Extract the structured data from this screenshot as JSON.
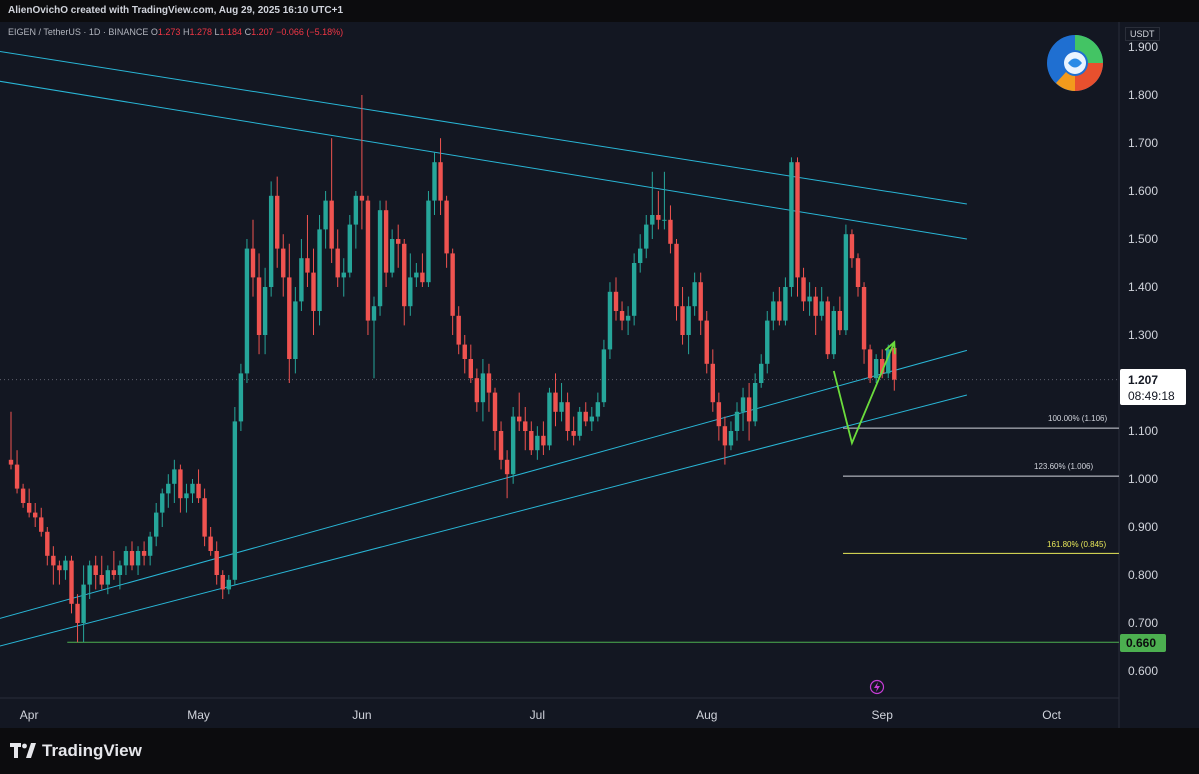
{
  "header": {
    "credit": "AlienOvichO created with TradingView.com, Aug 29, 2025 16:10 UTC+1"
  },
  "symbol": {
    "name": "EIGEN / TetherUS · 1D · BINANCE",
    "o_label": "O",
    "o": "1.273",
    "h_label": "H",
    "h": "1.278",
    "l_label": "L",
    "l": "1.184",
    "c_label": "C",
    "c": "1.207",
    "change": "−0.066 (−5.18%)"
  },
  "price_axis": {
    "unit": "USDT",
    "ticks": [
      "1.900",
      "1.800",
      "1.700",
      "1.600",
      "1.500",
      "1.400",
      "1.300",
      "1.100",
      "1.000",
      "0.900",
      "0.800",
      "0.700",
      "0.600"
    ],
    "current_price": "1.207",
    "countdown": "08:49:18",
    "level_label": "0.660"
  },
  "time_axis": {
    "ticks": [
      "Apr",
      "May",
      "Jun",
      "Jul",
      "Aug",
      "Sep",
      "Oct"
    ]
  },
  "fib_levels": [
    {
      "label": "100.00% (1.106)",
      "price": 1.106,
      "color": "#d1d4dc"
    },
    {
      "label": "123.60% (1.006)",
      "price": 1.006,
      "color": "#d1d4dc"
    },
    {
      "label": "161.80% (0.845)",
      "price": 0.845,
      "color": "#e8e85a"
    }
  ],
  "footer": {
    "brand": "TradingView"
  },
  "colors": {
    "up": "#26a69a",
    "down": "#ef5350",
    "trendline": "#29b6d6",
    "support": "#4caf50",
    "projection": "#6bdc3c",
    "background": "#131722"
  },
  "chart_data": {
    "type": "candlestick",
    "ylim": [
      0.58,
      1.92
    ],
    "x_unit": "trading days from Mar 29 2025",
    "candles": [
      {
        "o": 1.04,
        "h": 1.14,
        "l": 1.02,
        "c": 1.03
      },
      {
        "o": 1.03,
        "h": 1.06,
        "l": 0.97,
        "c": 0.98
      },
      {
        "o": 0.98,
        "h": 0.99,
        "l": 0.94,
        "c": 0.95
      },
      {
        "o": 0.95,
        "h": 0.98,
        "l": 0.92,
        "c": 0.93
      },
      {
        "o": 0.93,
        "h": 0.95,
        "l": 0.9,
        "c": 0.92
      },
      {
        "o": 0.92,
        "h": 0.94,
        "l": 0.88,
        "c": 0.89
      },
      {
        "o": 0.89,
        "h": 0.9,
        "l": 0.82,
        "c": 0.84
      },
      {
        "o": 0.84,
        "h": 0.86,
        "l": 0.78,
        "c": 0.82
      },
      {
        "o": 0.82,
        "h": 0.83,
        "l": 0.78,
        "c": 0.81
      },
      {
        "o": 0.81,
        "h": 0.84,
        "l": 0.79,
        "c": 0.83
      },
      {
        "o": 0.83,
        "h": 0.84,
        "l": 0.72,
        "c": 0.74
      },
      {
        "o": 0.74,
        "h": 0.76,
        "l": 0.66,
        "c": 0.7
      },
      {
        "o": 0.7,
        "h": 0.82,
        "l": 0.66,
        "c": 0.78
      },
      {
        "o": 0.78,
        "h": 0.83,
        "l": 0.75,
        "c": 0.82
      },
      {
        "o": 0.82,
        "h": 0.84,
        "l": 0.77,
        "c": 0.8
      },
      {
        "o": 0.8,
        "h": 0.84,
        "l": 0.77,
        "c": 0.78
      },
      {
        "o": 0.78,
        "h": 0.82,
        "l": 0.76,
        "c": 0.81
      },
      {
        "o": 0.81,
        "h": 0.85,
        "l": 0.79,
        "c": 0.8
      },
      {
        "o": 0.8,
        "h": 0.83,
        "l": 0.77,
        "c": 0.82
      },
      {
        "o": 0.82,
        "h": 0.86,
        "l": 0.8,
        "c": 0.85
      },
      {
        "o": 0.85,
        "h": 0.87,
        "l": 0.81,
        "c": 0.82
      },
      {
        "o": 0.82,
        "h": 0.86,
        "l": 0.8,
        "c": 0.85
      },
      {
        "o": 0.85,
        "h": 0.87,
        "l": 0.82,
        "c": 0.84
      },
      {
        "o": 0.84,
        "h": 0.89,
        "l": 0.82,
        "c": 0.88
      },
      {
        "o": 0.88,
        "h": 0.95,
        "l": 0.86,
        "c": 0.93
      },
      {
        "o": 0.93,
        "h": 0.98,
        "l": 0.9,
        "c": 0.97
      },
      {
        "o": 0.97,
        "h": 1.01,
        "l": 0.94,
        "c": 0.99
      },
      {
        "o": 0.99,
        "h": 1.04,
        "l": 0.95,
        "c": 1.02
      },
      {
        "o": 1.02,
        "h": 1.03,
        "l": 0.93,
        "c": 0.96
      },
      {
        "o": 0.96,
        "h": 0.99,
        "l": 0.93,
        "c": 0.97
      },
      {
        "o": 0.97,
        "h": 1.0,
        "l": 0.95,
        "c": 0.99
      },
      {
        "o": 0.99,
        "h": 1.02,
        "l": 0.95,
        "c": 0.96
      },
      {
        "o": 0.96,
        "h": 0.98,
        "l": 0.86,
        "c": 0.88
      },
      {
        "o": 0.88,
        "h": 0.9,
        "l": 0.84,
        "c": 0.85
      },
      {
        "o": 0.85,
        "h": 0.87,
        "l": 0.78,
        "c": 0.8
      },
      {
        "o": 0.8,
        "h": 0.81,
        "l": 0.75,
        "c": 0.77
      },
      {
        "o": 0.77,
        "h": 0.8,
        "l": 0.76,
        "c": 0.79
      },
      {
        "o": 0.79,
        "h": 1.15,
        "l": 0.78,
        "c": 1.12
      },
      {
        "o": 1.12,
        "h": 1.24,
        "l": 1.1,
        "c": 1.22
      },
      {
        "o": 1.22,
        "h": 1.5,
        "l": 1.2,
        "c": 1.48
      },
      {
        "o": 1.48,
        "h": 1.54,
        "l": 1.38,
        "c": 1.42
      },
      {
        "o": 1.42,
        "h": 1.47,
        "l": 1.26,
        "c": 1.3
      },
      {
        "o": 1.3,
        "h": 1.44,
        "l": 1.26,
        "c": 1.4
      },
      {
        "o": 1.4,
        "h": 1.62,
        "l": 1.38,
        "c": 1.59
      },
      {
        "o": 1.59,
        "h": 1.63,
        "l": 1.44,
        "c": 1.48
      },
      {
        "o": 1.48,
        "h": 1.51,
        "l": 1.38,
        "c": 1.42
      },
      {
        "o": 1.42,
        "h": 1.49,
        "l": 1.2,
        "c": 1.25
      },
      {
        "o": 1.25,
        "h": 1.4,
        "l": 1.22,
        "c": 1.37
      },
      {
        "o": 1.37,
        "h": 1.5,
        "l": 1.35,
        "c": 1.46
      },
      {
        "o": 1.46,
        "h": 1.55,
        "l": 1.4,
        "c": 1.43
      },
      {
        "o": 1.43,
        "h": 1.48,
        "l": 1.3,
        "c": 1.35
      },
      {
        "o": 1.35,
        "h": 1.55,
        "l": 1.32,
        "c": 1.52
      },
      {
        "o": 1.52,
        "h": 1.6,
        "l": 1.48,
        "c": 1.58
      },
      {
        "o": 1.58,
        "h": 1.71,
        "l": 1.45,
        "c": 1.48
      },
      {
        "o": 1.48,
        "h": 1.52,
        "l": 1.4,
        "c": 1.42
      },
      {
        "o": 1.42,
        "h": 1.46,
        "l": 1.38,
        "c": 1.43
      },
      {
        "o": 1.43,
        "h": 1.55,
        "l": 1.42,
        "c": 1.53
      },
      {
        "o": 1.53,
        "h": 1.6,
        "l": 1.48,
        "c": 1.59
      },
      {
        "o": 1.59,
        "h": 1.8,
        "l": 1.52,
        "c": 1.58
      },
      {
        "o": 1.58,
        "h": 1.59,
        "l": 1.3,
        "c": 1.33
      },
      {
        "o": 1.33,
        "h": 1.38,
        "l": 1.21,
        "c": 1.36
      },
      {
        "o": 1.36,
        "h": 1.58,
        "l": 1.34,
        "c": 1.56
      },
      {
        "o": 1.56,
        "h": 1.58,
        "l": 1.4,
        "c": 1.43
      },
      {
        "o": 1.43,
        "h": 1.52,
        "l": 1.42,
        "c": 1.5
      },
      {
        "o": 1.5,
        "h": 1.53,
        "l": 1.44,
        "c": 1.49
      },
      {
        "o": 1.49,
        "h": 1.5,
        "l": 1.32,
        "c": 1.36
      },
      {
        "o": 1.36,
        "h": 1.47,
        "l": 1.34,
        "c": 1.42
      },
      {
        "o": 1.42,
        "h": 1.45,
        "l": 1.4,
        "c": 1.43
      },
      {
        "o": 1.43,
        "h": 1.47,
        "l": 1.4,
        "c": 1.41
      },
      {
        "o": 1.41,
        "h": 1.6,
        "l": 1.4,
        "c": 1.58
      },
      {
        "o": 1.58,
        "h": 1.68,
        "l": 1.55,
        "c": 1.66
      },
      {
        "o": 1.66,
        "h": 1.71,
        "l": 1.55,
        "c": 1.58
      },
      {
        "o": 1.58,
        "h": 1.59,
        "l": 1.44,
        "c": 1.47
      },
      {
        "o": 1.47,
        "h": 1.48,
        "l": 1.3,
        "c": 1.34
      },
      {
        "o": 1.34,
        "h": 1.36,
        "l": 1.26,
        "c": 1.28
      },
      {
        "o": 1.28,
        "h": 1.3,
        "l": 1.22,
        "c": 1.25
      },
      {
        "o": 1.25,
        "h": 1.28,
        "l": 1.2,
        "c": 1.21
      },
      {
        "o": 1.21,
        "h": 1.23,
        "l": 1.14,
        "c": 1.16
      },
      {
        "o": 1.16,
        "h": 1.25,
        "l": 1.12,
        "c": 1.22
      },
      {
        "o": 1.22,
        "h": 1.24,
        "l": 1.14,
        "c": 1.18
      },
      {
        "o": 1.18,
        "h": 1.19,
        "l": 1.06,
        "c": 1.1
      },
      {
        "o": 1.1,
        "h": 1.12,
        "l": 1.02,
        "c": 1.04
      },
      {
        "o": 1.04,
        "h": 1.06,
        "l": 0.96,
        "c": 1.01
      },
      {
        "o": 1.01,
        "h": 1.15,
        "l": 0.99,
        "c": 1.13
      },
      {
        "o": 1.13,
        "h": 1.18,
        "l": 1.1,
        "c": 1.12
      },
      {
        "o": 1.12,
        "h": 1.15,
        "l": 1.06,
        "c": 1.1
      },
      {
        "o": 1.1,
        "h": 1.12,
        "l": 1.05,
        "c": 1.06
      },
      {
        "o": 1.06,
        "h": 1.11,
        "l": 1.04,
        "c": 1.09
      },
      {
        "o": 1.09,
        "h": 1.12,
        "l": 1.05,
        "c": 1.07
      },
      {
        "o": 1.07,
        "h": 1.19,
        "l": 1.06,
        "c": 1.18
      },
      {
        "o": 1.18,
        "h": 1.22,
        "l": 1.11,
        "c": 1.14
      },
      {
        "o": 1.14,
        "h": 1.2,
        "l": 1.12,
        "c": 1.16
      },
      {
        "o": 1.16,
        "h": 1.18,
        "l": 1.08,
        "c": 1.1
      },
      {
        "o": 1.1,
        "h": 1.13,
        "l": 1.07,
        "c": 1.09
      },
      {
        "o": 1.09,
        "h": 1.15,
        "l": 1.08,
        "c": 1.14
      },
      {
        "o": 1.14,
        "h": 1.16,
        "l": 1.11,
        "c": 1.12
      },
      {
        "o": 1.12,
        "h": 1.15,
        "l": 1.1,
        "c": 1.13
      },
      {
        "o": 1.13,
        "h": 1.18,
        "l": 1.12,
        "c": 1.16
      },
      {
        "o": 1.16,
        "h": 1.29,
        "l": 1.15,
        "c": 1.27
      },
      {
        "o": 1.27,
        "h": 1.41,
        "l": 1.25,
        "c": 1.39
      },
      {
        "o": 1.39,
        "h": 1.42,
        "l": 1.33,
        "c": 1.35
      },
      {
        "o": 1.35,
        "h": 1.37,
        "l": 1.31,
        "c": 1.33
      },
      {
        "o": 1.33,
        "h": 1.36,
        "l": 1.3,
        "c": 1.34
      },
      {
        "o": 1.34,
        "h": 1.47,
        "l": 1.32,
        "c": 1.45
      },
      {
        "o": 1.45,
        "h": 1.51,
        "l": 1.43,
        "c": 1.48
      },
      {
        "o": 1.48,
        "h": 1.55,
        "l": 1.46,
        "c": 1.53
      },
      {
        "o": 1.53,
        "h": 1.64,
        "l": 1.5,
        "c": 1.55
      },
      {
        "o": 1.55,
        "h": 1.6,
        "l": 1.52,
        "c": 1.54
      },
      {
        "o": 1.54,
        "h": 1.64,
        "l": 1.52,
        "c": 1.54
      },
      {
        "o": 1.54,
        "h": 1.57,
        "l": 1.47,
        "c": 1.49
      },
      {
        "o": 1.49,
        "h": 1.5,
        "l": 1.33,
        "c": 1.36
      },
      {
        "o": 1.36,
        "h": 1.4,
        "l": 1.28,
        "c": 1.3
      },
      {
        "o": 1.3,
        "h": 1.38,
        "l": 1.26,
        "c": 1.36
      },
      {
        "o": 1.36,
        "h": 1.43,
        "l": 1.34,
        "c": 1.41
      },
      {
        "o": 1.41,
        "h": 1.43,
        "l": 1.3,
        "c": 1.33
      },
      {
        "o": 1.33,
        "h": 1.35,
        "l": 1.22,
        "c": 1.24
      },
      {
        "o": 1.24,
        "h": 1.27,
        "l": 1.14,
        "c": 1.16
      },
      {
        "o": 1.16,
        "h": 1.18,
        "l": 1.08,
        "c": 1.11
      },
      {
        "o": 1.11,
        "h": 1.13,
        "l": 1.03,
        "c": 1.07
      },
      {
        "o": 1.07,
        "h": 1.12,
        "l": 1.06,
        "c": 1.1
      },
      {
        "o": 1.1,
        "h": 1.16,
        "l": 1.08,
        "c": 1.14
      },
      {
        "o": 1.14,
        "h": 1.19,
        "l": 1.1,
        "c": 1.17
      },
      {
        "o": 1.17,
        "h": 1.2,
        "l": 1.08,
        "c": 1.12
      },
      {
        "o": 1.12,
        "h": 1.22,
        "l": 1.11,
        "c": 1.2
      },
      {
        "o": 1.2,
        "h": 1.26,
        "l": 1.19,
        "c": 1.24
      },
      {
        "o": 1.24,
        "h": 1.35,
        "l": 1.22,
        "c": 1.33
      },
      {
        "o": 1.33,
        "h": 1.39,
        "l": 1.31,
        "c": 1.37
      },
      {
        "o": 1.37,
        "h": 1.4,
        "l": 1.32,
        "c": 1.33
      },
      {
        "o": 1.33,
        "h": 1.42,
        "l": 1.32,
        "c": 1.4
      },
      {
        "o": 1.4,
        "h": 1.67,
        "l": 1.38,
        "c": 1.66
      },
      {
        "o": 1.66,
        "h": 1.67,
        "l": 1.38,
        "c": 1.42
      },
      {
        "o": 1.42,
        "h": 1.44,
        "l": 1.35,
        "c": 1.37
      },
      {
        "o": 1.37,
        "h": 1.41,
        "l": 1.34,
        "c": 1.38
      },
      {
        "o": 1.38,
        "h": 1.4,
        "l": 1.3,
        "c": 1.34
      },
      {
        "o": 1.34,
        "h": 1.4,
        "l": 1.33,
        "c": 1.37
      },
      {
        "o": 1.37,
        "h": 1.38,
        "l": 1.25,
        "c": 1.26
      },
      {
        "o": 1.26,
        "h": 1.36,
        "l": 1.25,
        "c": 1.35
      },
      {
        "o": 1.35,
        "h": 1.38,
        "l": 1.3,
        "c": 1.31
      },
      {
        "o": 1.31,
        "h": 1.53,
        "l": 1.3,
        "c": 1.51
      },
      {
        "o": 1.51,
        "h": 1.52,
        "l": 1.44,
        "c": 1.46
      },
      {
        "o": 1.46,
        "h": 1.47,
        "l": 1.38,
        "c": 1.4
      },
      {
        "o": 1.4,
        "h": 1.41,
        "l": 1.24,
        "c": 1.27
      },
      {
        "o": 1.27,
        "h": 1.28,
        "l": 1.2,
        "c": 1.21
      },
      {
        "o": 1.21,
        "h": 1.26,
        "l": 1.2,
        "c": 1.25
      },
      {
        "o": 1.25,
        "h": 1.27,
        "l": 1.21,
        "c": 1.22
      },
      {
        "o": 1.22,
        "h": 1.28,
        "l": 1.21,
        "c": 1.27
      },
      {
        "o": 1.273,
        "h": 1.278,
        "l": 1.184,
        "c": 1.207
      }
    ],
    "trendlines": [
      {
        "name": "channel-top-outer",
        "p1": {
          "x": -4,
          "y": 1.895
        },
        "p2": {
          "x": 158,
          "y": 1.573
        }
      },
      {
        "name": "channel-top-inner",
        "p1": {
          "x": -4,
          "y": 1.833
        },
        "p2": {
          "x": 158,
          "y": 1.5
        }
      },
      {
        "name": "channel-bottom-outer",
        "p1": {
          "x": -4,
          "y": 0.702
        },
        "p2": {
          "x": 158,
          "y": 1.268
        }
      },
      {
        "name": "channel-bottom-inner",
        "p1": {
          "x": -4,
          "y": 0.645
        },
        "p2": {
          "x": 158,
          "y": 1.175
        }
      }
    ],
    "support_level": 0.66,
    "projection": [
      {
        "x": 136,
        "y": 1.225
      },
      {
        "x": 139,
        "y": 1.075
      },
      {
        "x": 146,
        "y": 1.285
      }
    ],
    "current_price": 1.207
  }
}
